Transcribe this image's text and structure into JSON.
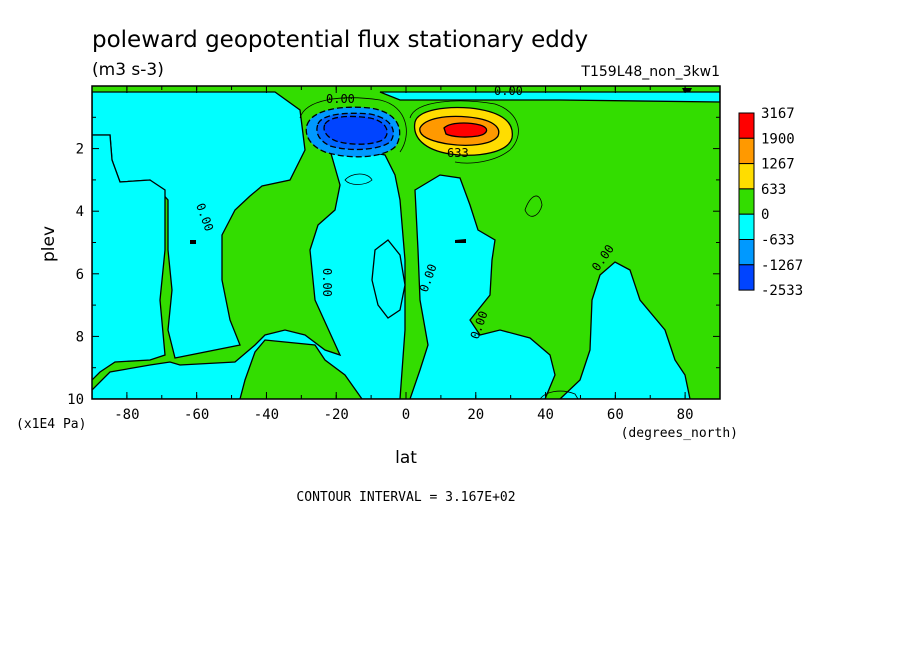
{
  "chart_data": {
    "type": "heatmap",
    "title": "poleward geopotential flux stationary eddy",
    "units": "(m3 s-3)",
    "run_id": "T159L48_non_3kw1",
    "xlabel": "lat",
    "x_units": "(degrees_north)",
    "ylabel": "plev",
    "y_units": "(x1E4 Pa)",
    "xlim": [
      -90,
      90
    ],
    "ylim": [
      10,
      0
    ],
    "x_ticks": [
      "-80",
      "-60",
      "-40",
      "-20",
      "0",
      "20",
      "40",
      "60",
      "80"
    ],
    "y_ticks": [
      "2",
      "4",
      "6",
      "8",
      "10"
    ],
    "contour_interval_text": "CONTOUR INTERVAL = 3.167E+02",
    "colorbar": {
      "labels": [
        "3167",
        "1900",
        "1267",
        "633",
        "0",
        "-633",
        "-1267",
        "-2533"
      ],
      "colors": [
        "#ff0000",
        "#ff9900",
        "#ffdd00",
        "#33dd00",
        "#00ffff",
        "#0099ff",
        "#0044ff"
      ]
    },
    "contour_labels": [
      "0.00",
      "0.00",
      "0.00",
      "0.00",
      "0.00",
      "0.00",
      "0.00",
      "633"
    ],
    "features": [
      {
        "name": "negative max",
        "lat": -15,
        "plev": 1.3,
        "approx_value": -2533
      },
      {
        "name": "positive max",
        "lat": 14,
        "plev": 1.3,
        "approx_value": 3167
      }
    ]
  }
}
